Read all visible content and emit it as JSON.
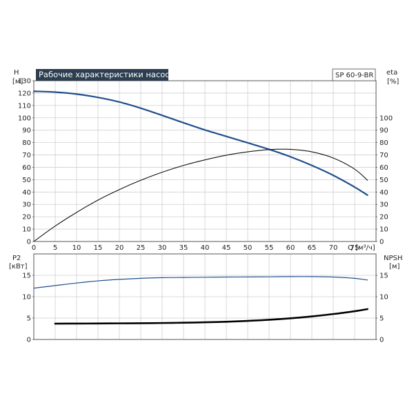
{
  "chart_data": [
    {
      "type": "line",
      "title": "Рабочие характеристики насоса",
      "model_label": "SP 60-9-BR",
      "left_axis": {
        "label_line1": "H",
        "label_line2": "[м]",
        "range": [
          0,
          130
        ],
        "ticks": [
          0,
          10,
          20,
          30,
          40,
          50,
          60,
          70,
          80,
          90,
          100,
          110,
          120,
          130
        ]
      },
      "right_axis": {
        "label_line1": "eta",
        "label_line2": "[%]",
        "range": [
          0,
          130
        ],
        "ticks": [
          0,
          10,
          20,
          30,
          40,
          50,
          60,
          70,
          80,
          90,
          100
        ]
      },
      "x_axis": {
        "label": "Q [м³/ч]",
        "range": [
          0,
          80
        ],
        "ticks": [
          0,
          5,
          10,
          15,
          20,
          25,
          30,
          35,
          40,
          45,
          50,
          55,
          60,
          65,
          70,
          75
        ]
      },
      "grid": true,
      "series": [
        {
          "key": "head",
          "axis": "left",
          "color": "#1f4e8c",
          "width": 2.2,
          "x": [
            0,
            5,
            10,
            15,
            20,
            25,
            30,
            35,
            40,
            45,
            50,
            55,
            60,
            65,
            70,
            75,
            78
          ],
          "y": [
            121.5,
            120.8,
            119.2,
            116.5,
            112.8,
            107.8,
            102,
            96,
            90.2,
            85,
            79.8,
            74.5,
            68.5,
            61.5,
            53.5,
            44,
            37.5
          ]
        },
        {
          "key": "efficiency",
          "axis": "right",
          "color": "#111111",
          "width": 1.1,
          "x": [
            0,
            5,
            10,
            15,
            20,
            25,
            30,
            35,
            40,
            45,
            50,
            55,
            60,
            65,
            70,
            75,
            78
          ],
          "y": [
            0,
            12.5,
            23.5,
            33.5,
            42,
            49.5,
            56,
            61.5,
            66,
            69.8,
            72.5,
            74.3,
            74.5,
            72.5,
            67.5,
            58.5,
            49.5
          ]
        }
      ]
    },
    {
      "type": "line",
      "left_axis": {
        "label_line1": "P2",
        "label_line2": "[кВт]",
        "range": [
          0,
          20
        ],
        "ticks": [
          0,
          5,
          10,
          15
        ]
      },
      "right_axis": {
        "label_line1": "NPSH",
        "label_line2": "[м]",
        "range": [
          0,
          20
        ],
        "ticks": [
          0,
          5,
          10,
          15
        ]
      },
      "grid": true,
      "series": [
        {
          "key": "p2",
          "axis": "left",
          "color": "#1f4e8c",
          "width": 1.2,
          "x": [
            0,
            5,
            10,
            15,
            20,
            25,
            30,
            35,
            40,
            45,
            50,
            55,
            60,
            65,
            70,
            75,
            78
          ],
          "y": [
            12,
            12.6,
            13.2,
            13.7,
            14.05,
            14.3,
            14.45,
            14.5,
            14.55,
            14.6,
            14.62,
            14.65,
            14.7,
            14.7,
            14.6,
            14.3,
            13.9
          ]
        },
        {
          "key": "npsh",
          "axis": "right",
          "color": "#000000",
          "width": 2.6,
          "x": [
            5,
            10,
            15,
            20,
            25,
            30,
            35,
            40,
            45,
            50,
            55,
            60,
            65,
            70,
            75,
            78
          ],
          "y": [
            3.7,
            3.72,
            3.74,
            3.77,
            3.8,
            3.85,
            3.92,
            4.02,
            4.15,
            4.35,
            4.6,
            4.95,
            5.4,
            5.95,
            6.6,
            7.1
          ]
        }
      ]
    }
  ]
}
